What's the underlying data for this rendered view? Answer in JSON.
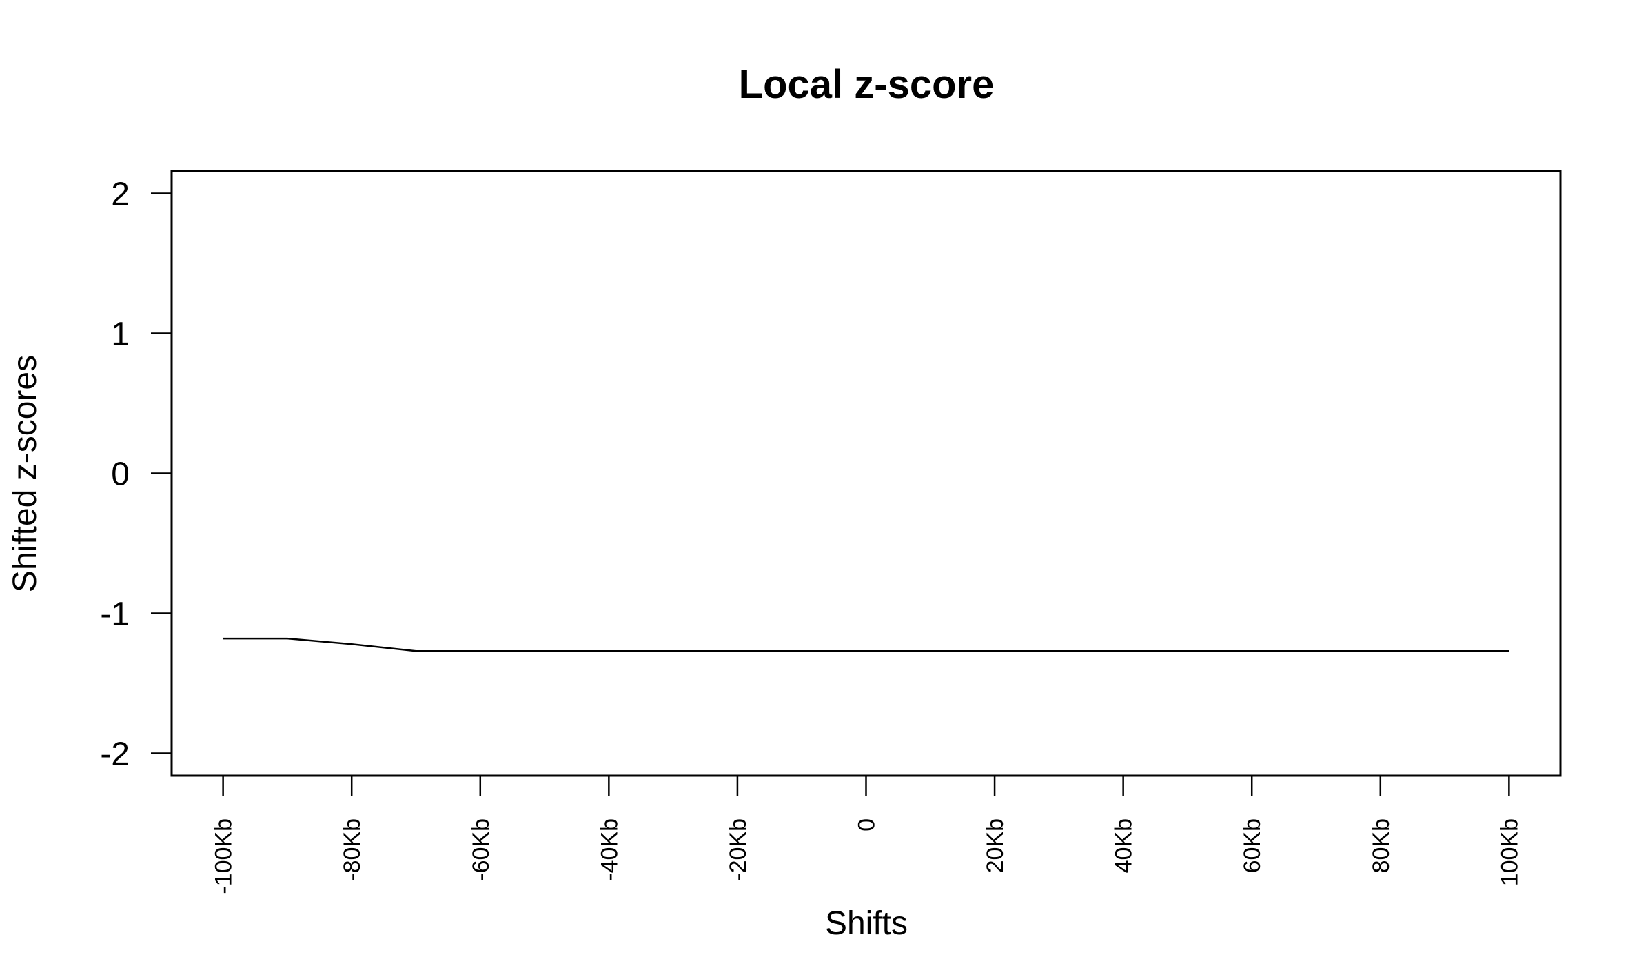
{
  "chart_data": {
    "type": "line",
    "title": "Local z-score",
    "xlabel": "Shifts",
    "ylabel": "Shifted z-scores",
    "x_ticks": [
      {
        "value": -100000,
        "label": "-100Kb"
      },
      {
        "value": -80000,
        "label": "-80Kb"
      },
      {
        "value": -60000,
        "label": "-60Kb"
      },
      {
        "value": -40000,
        "label": "-40Kb"
      },
      {
        "value": -20000,
        "label": "-20Kb"
      },
      {
        "value": 0,
        "label": "0"
      },
      {
        "value": 20000,
        "label": "20Kb"
      },
      {
        "value": 40000,
        "label": "40Kb"
      },
      {
        "value": 60000,
        "label": "60Kb"
      },
      {
        "value": 80000,
        "label": "80Kb"
      },
      {
        "value": 100000,
        "label": "100Kb"
      }
    ],
    "y_ticks": [
      {
        "value": 2,
        "label": "2"
      },
      {
        "value": 1,
        "label": "1"
      },
      {
        "value": 0,
        "label": "0"
      },
      {
        "value": -1,
        "label": "-1"
      },
      {
        "value": -2,
        "label": "-2"
      }
    ],
    "xlim": [
      -108000,
      108000
    ],
    "ylim": [
      -2.16,
      2.16
    ],
    "grid": false,
    "legend": "none",
    "series": [
      {
        "color": "#000000",
        "x": [
          -100000,
          -90000,
          -80000,
          -70000,
          -60000,
          -50000,
          -40000,
          -30000,
          -20000,
          -10000,
          0,
          10000,
          20000,
          30000,
          40000,
          50000,
          60000,
          70000,
          80000,
          90000,
          100000
        ],
        "y": [
          -1.18,
          -1.18,
          -1.22,
          -1.27,
          -1.27,
          -1.27,
          -1.27,
          -1.27,
          -1.27,
          -1.27,
          -1.27,
          -1.27,
          -1.27,
          -1.27,
          -1.27,
          -1.27,
          -1.27,
          -1.27,
          -1.27,
          -1.27,
          -1.27
        ]
      }
    ]
  }
}
